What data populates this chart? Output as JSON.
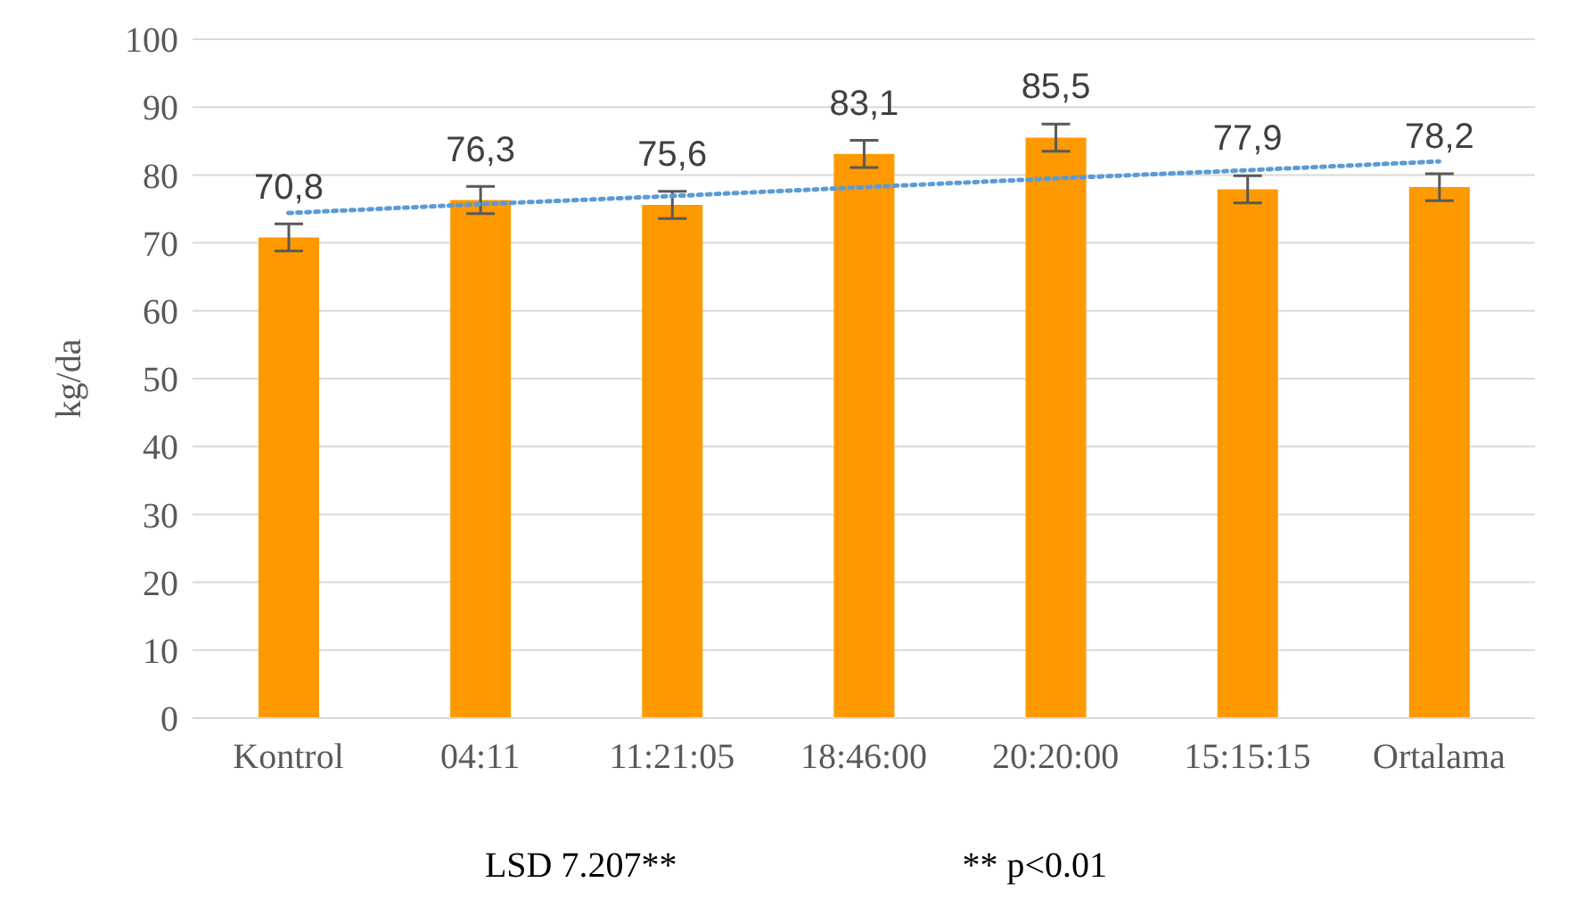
{
  "chart_data": {
    "type": "bar",
    "ylabel": "kg/da",
    "categories": [
      "Kontrol",
      "04:11",
      "11:21:05",
      "18:46:00",
      "20:20:00",
      "15:15:15",
      "Ortalama"
    ],
    "series": [
      {
        "color": "#ff9900",
        "values": [
          70.8,
          76.3,
          75.6,
          83.1,
          85.5,
          77.9,
          78.2
        ],
        "errors": [
          2,
          2,
          2,
          2,
          2,
          2,
          2
        ],
        "value_labels": [
          "70,8",
          "76,3",
          "75,6",
          "83,1",
          "85,5",
          "77,9",
          "78,2"
        ]
      },
      {
        "type": "line",
        "color": "#5b9bd5",
        "line_style": "dotted",
        "marker": "none",
        "values": [
          74.4,
          75.7,
          76.9,
          78.2,
          79.5,
          80.7,
          82.0
        ]
      }
    ],
    "ylim": [
      0,
      100
    ],
    "yticks": [
      0,
      10,
      20,
      30,
      40,
      50,
      60,
      70,
      80,
      90,
      100
    ],
    "grid": "y",
    "legend": false,
    "annotations": [
      "LSD 7.207**",
      "** p<0.01"
    ]
  }
}
